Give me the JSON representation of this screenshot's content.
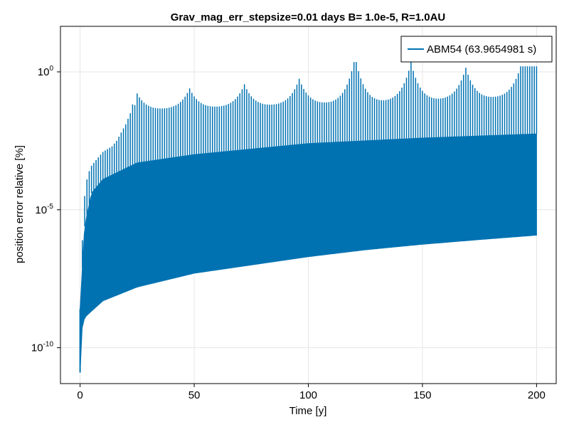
{
  "chart_data": {
    "type": "line",
    "title": "Grav_mag_err_stepsize=0.01 days B= 1.0e-5, R=1.0AU",
    "xlabel": "Time [y]",
    "ylabel": "position error relative [%]",
    "xlim": [
      -8.6,
      208.6
    ],
    "ylim_log10": [
      -11.3,
      1.65
    ],
    "yscale": "log10",
    "grid": true,
    "x_ticks": [
      0,
      50,
      100,
      150,
      200
    ],
    "x_tick_labels": [
      "0",
      "50",
      "100",
      "150",
      "200"
    ],
    "y_ticks_log10": [
      -10,
      -5,
      0
    ],
    "y_tick_labels": [
      {
        "base": "10",
        "exp": "-10"
      },
      {
        "base": "10",
        "exp": "-5"
      },
      {
        "base": "10",
        "exp": "0"
      }
    ],
    "legend": {
      "placement": "top-right"
    },
    "series": [
      {
        "name": "ABM54 (63.9654981 s)",
        "color": "#0072b2",
        "x_range": [
          0,
          200
        ],
        "lower_envelope_log10": [
          {
            "x": 0,
            "y": -10.9
          },
          {
            "x": 0.3,
            "y": -9.5
          },
          {
            "x": 2,
            "y": -8.9
          },
          {
            "x": 10,
            "y": -8.3
          },
          {
            "x": 25,
            "y": -7.8
          },
          {
            "x": 50,
            "y": -7.3
          },
          {
            "x": 75,
            "y": -7.0
          },
          {
            "x": 100,
            "y": -6.7
          },
          {
            "x": 125,
            "y": -6.45
          },
          {
            "x": 150,
            "y": -6.25
          },
          {
            "x": 175,
            "y": -6.08
          },
          {
            "x": 200,
            "y": -5.92
          }
        ],
        "upper_band_log10": [
          {
            "x": 0,
            "y": -8.6
          },
          {
            "x": 2,
            "y": -5.6
          },
          {
            "x": 5,
            "y": -4.4
          },
          {
            "x": 10,
            "y": -3.9
          },
          {
            "x": 25,
            "y": -3.3
          },
          {
            "x": 50,
            "y": -3.0
          },
          {
            "x": 100,
            "y": -2.6
          },
          {
            "x": 150,
            "y": -2.4
          },
          {
            "x": 200,
            "y": -2.25
          }
        ],
        "spike_peaks_log10": [
          {
            "x": 1,
            "y": -6.1
          },
          {
            "x": 2,
            "y": -4.5
          },
          {
            "x": 3,
            "y": -3.9
          },
          {
            "x": 4,
            "y": -3.6
          },
          {
            "x": 5,
            "y": -3.4
          },
          {
            "x": 6,
            "y": -3.3
          },
          {
            "x": 7,
            "y": -3.2
          },
          {
            "x": 8,
            "y": -3.1
          },
          {
            "x": 10,
            "y": -2.9
          },
          {
            "x": 12,
            "y": -2.8
          },
          {
            "x": 14,
            "y": -2.7
          },
          {
            "x": 16,
            "y": -2.5
          },
          {
            "x": 18,
            "y": -2.2
          },
          {
            "x": 20,
            "y": -1.9
          },
          {
            "x": 22,
            "y": -1.5
          },
          {
            "x": 24.5,
            "y": -0.7
          },
          {
            "x": 48,
            "y": -0.6
          },
          {
            "x": 72,
            "y": -0.45
          },
          {
            "x": 96,
            "y": -0.25
          },
          {
            "x": 120.5,
            "y": 0.55
          },
          {
            "x": 145,
            "y": 0.35
          },
          {
            "x": 169,
            "y": 0.15
          },
          {
            "x": 193,
            "y": 0.2
          }
        ]
      }
    ]
  }
}
